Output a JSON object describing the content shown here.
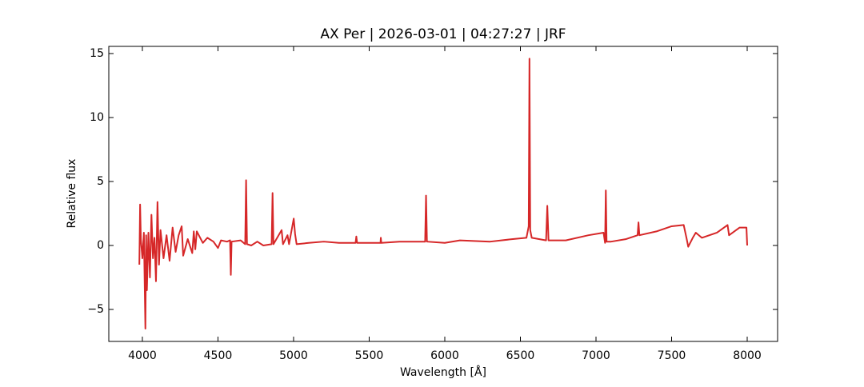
{
  "chart_data": {
    "type": "line",
    "title": "AX Per | 2026-03-01 | 04:27:27 | JRF",
    "x_label": "Wavelength [Å]",
    "y_label": "Relative flux",
    "xlim": [
      3778,
      8201
    ],
    "ylim": [
      -7.5,
      15.56
    ],
    "xticks": [
      4000,
      4500,
      5000,
      5500,
      6000,
      6500,
      7000,
      7500,
      8000
    ],
    "yticks": [
      {
        "value": -5,
        "label": "−5"
      },
      0,
      5,
      10,
      15
    ],
    "grid": false,
    "x": [
      3980,
      3985,
      3990,
      4000,
      4010,
      4020,
      4025,
      4030,
      4040,
      4050,
      4060,
      4070,
      4080,
      4090,
      4100,
      4110,
      4120,
      4140,
      4160,
      4180,
      4200,
      4220,
      4240,
      4260,
      4270,
      4300,
      4330,
      4340,
      4350,
      4360,
      4400,
      4430,
      4470,
      4500,
      4520,
      4560,
      4580,
      4585,
      4590,
      4650,
      4680,
      4686,
      4692,
      4720,
      4760,
      4800,
      4855,
      4861,
      4867,
      4921,
      4930,
      4960,
      4970,
      5001,
      5010,
      5020,
      5100,
      5200,
      5300,
      5410,
      5415,
      5420,
      5575,
      5577,
      5580,
      5700,
      5870,
      5876,
      5882,
      6000,
      6100,
      6300,
      6450,
      6540,
      6555,
      6560,
      6565,
      6575,
      6670,
      6678,
      6686,
      6800,
      6950,
      7050,
      7060,
      7065,
      7070,
      7100,
      7200,
      7275,
      7281,
      7287,
      7400,
      7500,
      7580,
      7600,
      7610,
      7640,
      7660,
      7700,
      7800,
      7870,
      7880,
      7950,
      7995,
      8000
    ],
    "series": [
      {
        "name": "AX Per",
        "color": "#d62728",
        "values": [
          -1.5,
          3.2,
          0.5,
          -1.0,
          1.0,
          -6.5,
          0.8,
          -3.5,
          1.0,
          -2.5,
          2.4,
          -1.0,
          0.6,
          -2.8,
          3.4,
          -1.5,
          1.2,
          -1.0,
          0.8,
          -1.2,
          1.4,
          -0.5,
          0.8,
          1.5,
          -0.8,
          0.5,
          -0.6,
          1.1,
          -0.3,
          1.1,
          0.2,
          0.6,
          0.3,
          -0.2,
          0.4,
          0.3,
          0.4,
          -2.3,
          0.3,
          0.4,
          0.1,
          5.1,
          0.1,
          0.0,
          0.3,
          0.0,
          0.1,
          4.1,
          0.1,
          1.2,
          0.1,
          0.8,
          0.1,
          2.1,
          0.9,
          0.1,
          0.2,
          0.3,
          0.2,
          0.2,
          0.7,
          0.2,
          0.2,
          0.6,
          0.2,
          0.3,
          0.3,
          3.9,
          0.3,
          0.2,
          0.4,
          0.3,
          0.5,
          0.6,
          1.5,
          14.6,
          1.2,
          0.6,
          0.4,
          3.1,
          0.4,
          0.4,
          0.8,
          1.0,
          0.2,
          4.3,
          0.3,
          0.3,
          0.5,
          0.8,
          1.8,
          0.8,
          1.1,
          1.5,
          1.6,
          0.5,
          -0.1,
          0.6,
          1.0,
          0.6,
          1.0,
          1.6,
          0.8,
          1.4,
          1.4,
          0.0
        ]
      }
    ]
  }
}
